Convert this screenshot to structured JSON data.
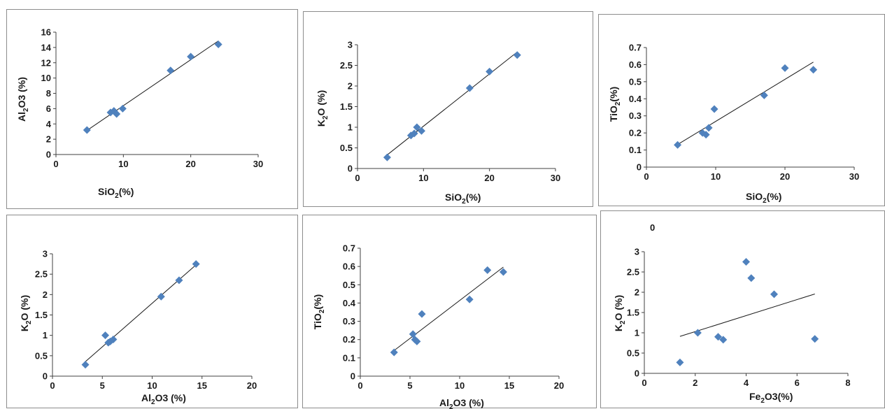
{
  "colors": {
    "marker": "#4f81bd",
    "trend": "#1a1a1a",
    "axis": "#404040",
    "frame": "#8c8c8c"
  },
  "chart_data": [
    {
      "type": "scatter",
      "xlabel": {
        "pre": "SiO",
        "sub": "2",
        "post": "(%)"
      },
      "ylabel": {
        "pre": "Al",
        "sub": "2",
        "post": "O3 (%)"
      },
      "xlim": [
        0,
        30
      ],
      "xticks": [
        0,
        10,
        20,
        30
      ],
      "ylim": [
        0,
        16
      ],
      "yticks": [
        0,
        2,
        4,
        6,
        8,
        10,
        12,
        14,
        16
      ],
      "x": [
        4.6,
        8.1,
        8.6,
        9.0,
        9.9,
        17.0,
        20.0,
        24.1
      ],
      "y": [
        3.2,
        5.5,
        5.7,
        5.3,
        6.0,
        11.0,
        12.8,
        14.4
      ],
      "trendline": true,
      "note": ""
    },
    {
      "type": "scatter",
      "xlabel": {
        "pre": "SiO",
        "sub": "2",
        "post": "(%)"
      },
      "ylabel": {
        "pre": "K",
        "sub": "2",
        "post": "O (%)"
      },
      "xlim": [
        0,
        30
      ],
      "xticks": [
        0,
        10,
        20,
        30
      ],
      "ylim": [
        0,
        3
      ],
      "yticks": [
        0,
        0.5,
        1,
        1.5,
        2,
        2.5,
        3
      ],
      "x": [
        4.5,
        8.1,
        8.6,
        9.0,
        9.7,
        17.0,
        20.0,
        24.2
      ],
      "y": [
        0.27,
        0.8,
        0.85,
        1.0,
        0.91,
        1.95,
        2.35,
        2.75
      ],
      "trendline": true,
      "note": ""
    },
    {
      "type": "scatter",
      "xlabel": {
        "pre": "SiO",
        "sub": "2",
        "post": "(%)"
      },
      "ylabel": {
        "pre": "TiO",
        "sub": "2",
        "post": "(%)"
      },
      "xlim": [
        0,
        30
      ],
      "xticks": [
        0,
        10,
        20,
        30
      ],
      "ylim": [
        0,
        0.7
      ],
      "yticks": [
        0,
        0.1,
        0.2,
        0.3,
        0.4,
        0.5,
        0.6,
        0.7
      ],
      "x": [
        4.5,
        8.1,
        8.6,
        9.0,
        9.8,
        17.0,
        20.0,
        24.1
      ],
      "y": [
        0.13,
        0.2,
        0.19,
        0.23,
        0.34,
        0.42,
        0.58,
        0.57
      ],
      "trendline": true,
      "note": ""
    },
    {
      "type": "scatter",
      "xlabel": {
        "pre": "Al",
        "sub": "2",
        "post": "O3 (%)"
      },
      "ylabel": {
        "pre": "K",
        "sub": "2",
        "post": "O (%)"
      },
      "xlim": [
        0,
        20
      ],
      "xticks": [
        0,
        5,
        10,
        15,
        20
      ],
      "ylim": [
        0,
        3
      ],
      "yticks": [
        0,
        0.5,
        1,
        1.5,
        2,
        2.5,
        3
      ],
      "x": [
        3.3,
        5.3,
        5.6,
        5.8,
        6.1,
        10.9,
        12.7,
        14.4
      ],
      "y": [
        0.28,
        1.0,
        0.82,
        0.85,
        0.9,
        1.95,
        2.35,
        2.75
      ],
      "trendline": true,
      "note": ""
    },
    {
      "type": "scatter",
      "xlabel": {
        "pre": "Al",
        "sub": "2",
        "post": "O3 (%)"
      },
      "ylabel": {
        "pre": "TiO",
        "sub": "2",
        "post": "(%)"
      },
      "xlim": [
        0,
        20
      ],
      "xticks": [
        0,
        5,
        10,
        15,
        20
      ],
      "ylim": [
        0,
        0.7
      ],
      "yticks": [
        0,
        0.1,
        0.2,
        0.3,
        0.4,
        0.5,
        0.6,
        0.7
      ],
      "x": [
        3.4,
        5.3,
        5.5,
        5.7,
        6.2,
        11.0,
        12.8,
        14.4
      ],
      "y": [
        0.13,
        0.23,
        0.2,
        0.19,
        0.34,
        0.42,
        0.58,
        0.57
      ],
      "trendline": true,
      "note": ""
    },
    {
      "type": "scatter",
      "xlabel": {
        "pre": "Fe",
        "sub": "2",
        "post": "O3(%)"
      },
      "ylabel": {
        "pre": "K",
        "sub": "2",
        "post": "O (%)"
      },
      "xlim": [
        0,
        8
      ],
      "xticks": [
        0,
        2,
        4,
        6,
        8
      ],
      "ylim": [
        0,
        3
      ],
      "yticks": [
        0,
        0.5,
        1,
        1.5,
        2,
        2.5,
        3
      ],
      "x": [
        1.4,
        2.1,
        2.9,
        3.1,
        4.0,
        4.2,
        5.1,
        6.7
      ],
      "y": [
        0.27,
        1.0,
        0.9,
        0.83,
        2.75,
        2.35,
        1.95,
        0.85
      ],
      "trendline": true,
      "note": "0"
    }
  ]
}
